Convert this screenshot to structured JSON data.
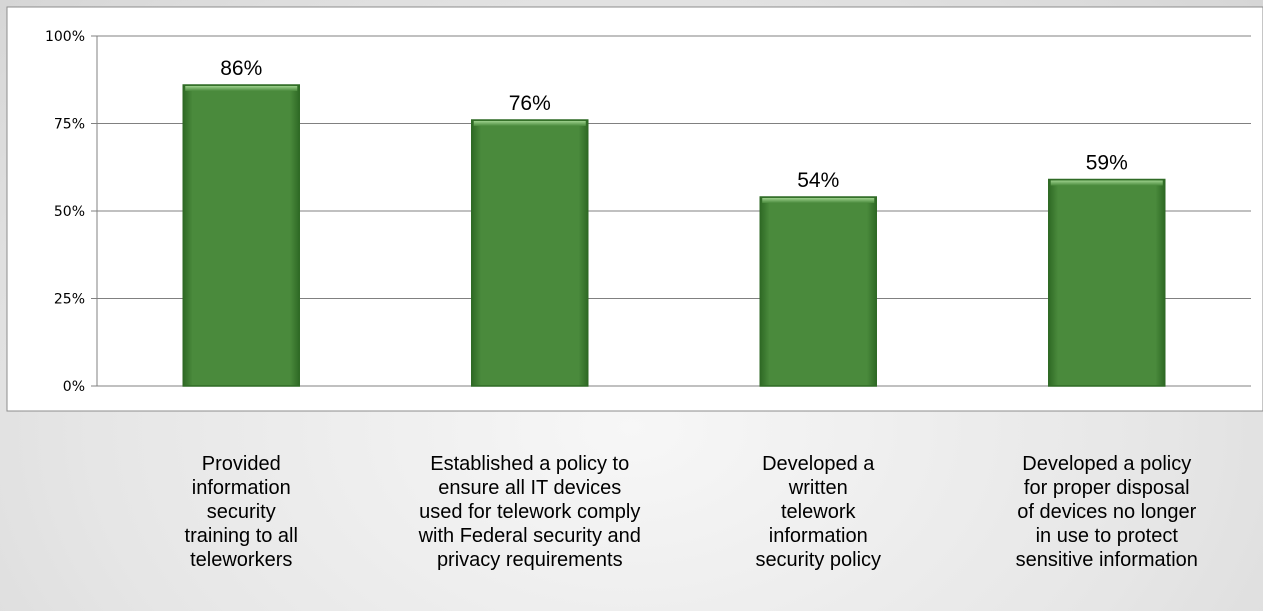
{
  "chart_data": {
    "type": "bar",
    "categories": [
      "Provided information security training to all teleworkers",
      "Established a policy to ensure all IT devices used for telework comply with Federal security and privacy requirements",
      "Developed a written telework information security policy",
      "Developed a policy for proper disposal of devices no longer in use to protect sensitive information"
    ],
    "values": [
      86,
      76,
      54,
      59
    ],
    "data_labels": [
      "86%",
      "76%",
      "54%",
      "59%"
    ],
    "y_ticks": [
      "0%",
      "25%",
      "50%",
      "75%",
      "100%"
    ],
    "ylim": [
      0,
      100
    ],
    "grid": true,
    "legend": "none",
    "bar_color": "#4a8a3c",
    "bar_edge_color": "#2f6a25"
  },
  "category_lines": [
    [
      "Provided",
      "information",
      "security",
      "training to all",
      "teleworkers"
    ],
    [
      "Established a policy to",
      "ensure all IT devices",
      "used for telework comply",
      "with Federal security and",
      "privacy requirements"
    ],
    [
      "Developed a",
      "written",
      "telework",
      "information",
      "security policy"
    ],
    [
      "Developed a policy",
      "for proper disposal",
      "of devices no longer",
      "in use to protect",
      "sensitive information"
    ]
  ]
}
